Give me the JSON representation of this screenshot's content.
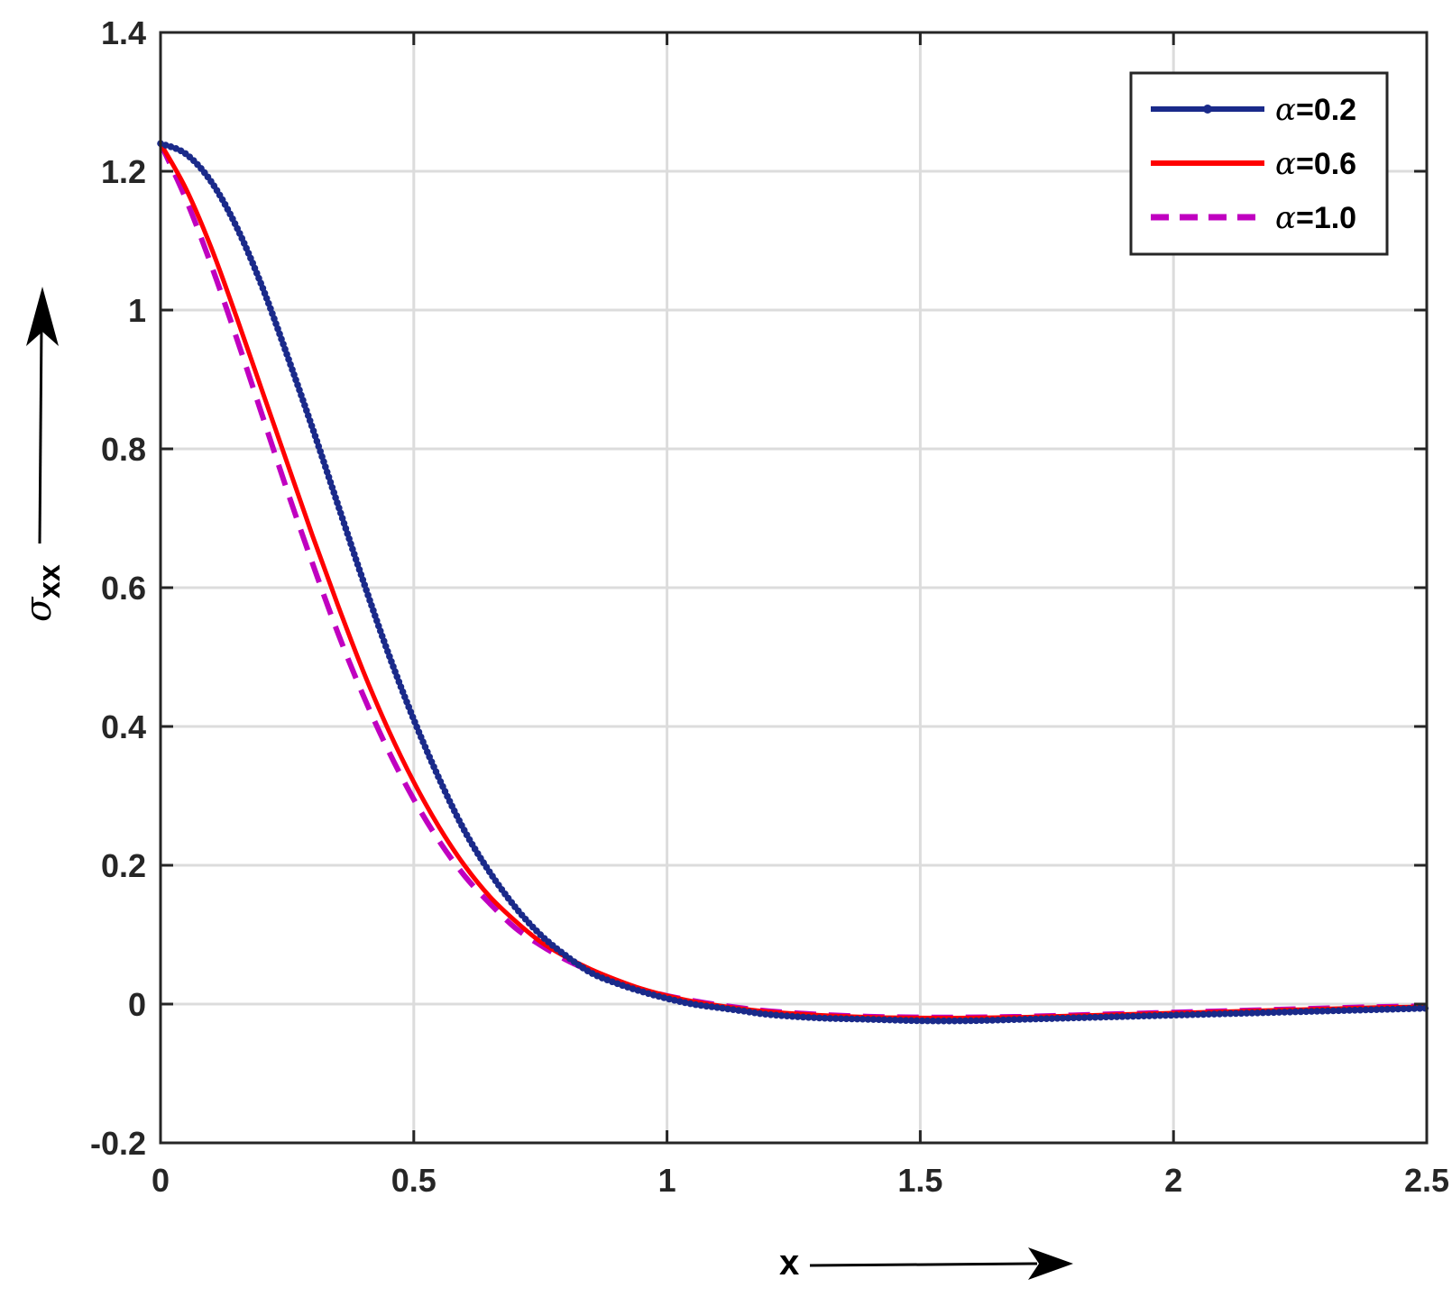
{
  "chart_data": {
    "type": "line",
    "xlabel": "x",
    "ylabel": {
      "symbol": "σ",
      "subscript": "xx"
    },
    "xlim": [
      0,
      2.5
    ],
    "ylim": [
      -0.2,
      1.4
    ],
    "xticks": [
      "0",
      "0.5",
      "1",
      "1.5",
      "2",
      "2.5"
    ],
    "yticks": [
      "-0.2",
      "0",
      "0.2",
      "0.4",
      "0.6",
      "0.8",
      "1",
      "1.2",
      "1.4"
    ],
    "grid": true,
    "legend_position": "top-right",
    "series": [
      {
        "name": "=0.2",
        "greek": "α",
        "color": "#1a2a8a",
        "style": "solid-dots",
        "x": [
          0,
          0.05,
          0.1,
          0.15,
          0.2,
          0.25,
          0.3,
          0.35,
          0.4,
          0.45,
          0.5,
          0.55,
          0.6,
          0.65,
          0.7,
          0.75,
          0.8,
          0.85,
          0.9,
          0.95,
          1.0,
          1.05,
          1.1,
          1.15,
          1.2,
          1.3,
          1.4,
          1.5,
          1.6,
          1.7,
          1.8,
          1.9,
          2.0,
          2.1,
          2.2,
          2.3,
          2.4,
          2.5
        ],
        "y": [
          1.24,
          1.225,
          1.185,
          1.12,
          1.035,
          0.935,
          0.83,
          0.72,
          0.61,
          0.505,
          0.41,
          0.325,
          0.25,
          0.19,
          0.14,
          0.1,
          0.07,
          0.045,
          0.03,
          0.018,
          0.008,
          0.0,
          -0.005,
          -0.01,
          -0.015,
          -0.02,
          -0.022,
          -0.024,
          -0.024,
          -0.022,
          -0.02,
          -0.018,
          -0.016,
          -0.014,
          -0.012,
          -0.01,
          -0.008,
          -0.006
        ]
      },
      {
        "name": "=0.6",
        "greek": "α",
        "color": "#ff0000",
        "style": "solid",
        "x": [
          0,
          0.05,
          0.1,
          0.15,
          0.2,
          0.25,
          0.3,
          0.35,
          0.4,
          0.45,
          0.5,
          0.55,
          0.6,
          0.65,
          0.7,
          0.75,
          0.8,
          0.85,
          0.9,
          0.95,
          1.0,
          1.05,
          1.1,
          1.15,
          1.2,
          1.3,
          1.4,
          1.5,
          1.6,
          1.7,
          1.8,
          1.9,
          2.0,
          2.1,
          2.2,
          2.3,
          2.4,
          2.5
        ],
        "y": [
          1.24,
          1.175,
          1.09,
          0.99,
          0.885,
          0.78,
          0.675,
          0.575,
          0.48,
          0.395,
          0.32,
          0.255,
          0.2,
          0.155,
          0.12,
          0.09,
          0.068,
          0.05,
          0.035,
          0.022,
          0.012,
          0.004,
          -0.002,
          -0.007,
          -0.011,
          -0.016,
          -0.019,
          -0.02,
          -0.02,
          -0.019,
          -0.017,
          -0.015,
          -0.013,
          -0.011,
          -0.009,
          -0.007,
          -0.005,
          -0.004
        ]
      },
      {
        "name": "=1.0",
        "greek": "α",
        "color": "#c000c0",
        "style": "dashed",
        "x": [
          0,
          0.05,
          0.1,
          0.15,
          0.2,
          0.25,
          0.3,
          0.35,
          0.4,
          0.45,
          0.5,
          0.55,
          0.6,
          0.65,
          0.7,
          0.75,
          0.8,
          0.85,
          0.9,
          0.95,
          1.0,
          1.05,
          1.1,
          1.15,
          1.2,
          1.3,
          1.4,
          1.5,
          1.6,
          1.7,
          1.8,
          1.9,
          2.0,
          2.1,
          2.2,
          2.3,
          2.4,
          2.5
        ],
        "y": [
          1.24,
          1.16,
          1.065,
          0.96,
          0.85,
          0.74,
          0.635,
          0.535,
          0.445,
          0.365,
          0.295,
          0.235,
          0.185,
          0.145,
          0.11,
          0.085,
          0.064,
          0.047,
          0.033,
          0.021,
          0.012,
          0.005,
          -0.001,
          -0.006,
          -0.01,
          -0.015,
          -0.018,
          -0.019,
          -0.019,
          -0.018,
          -0.016,
          -0.014,
          -0.012,
          -0.01,
          -0.008,
          -0.006,
          -0.004,
          -0.003
        ]
      }
    ]
  }
}
